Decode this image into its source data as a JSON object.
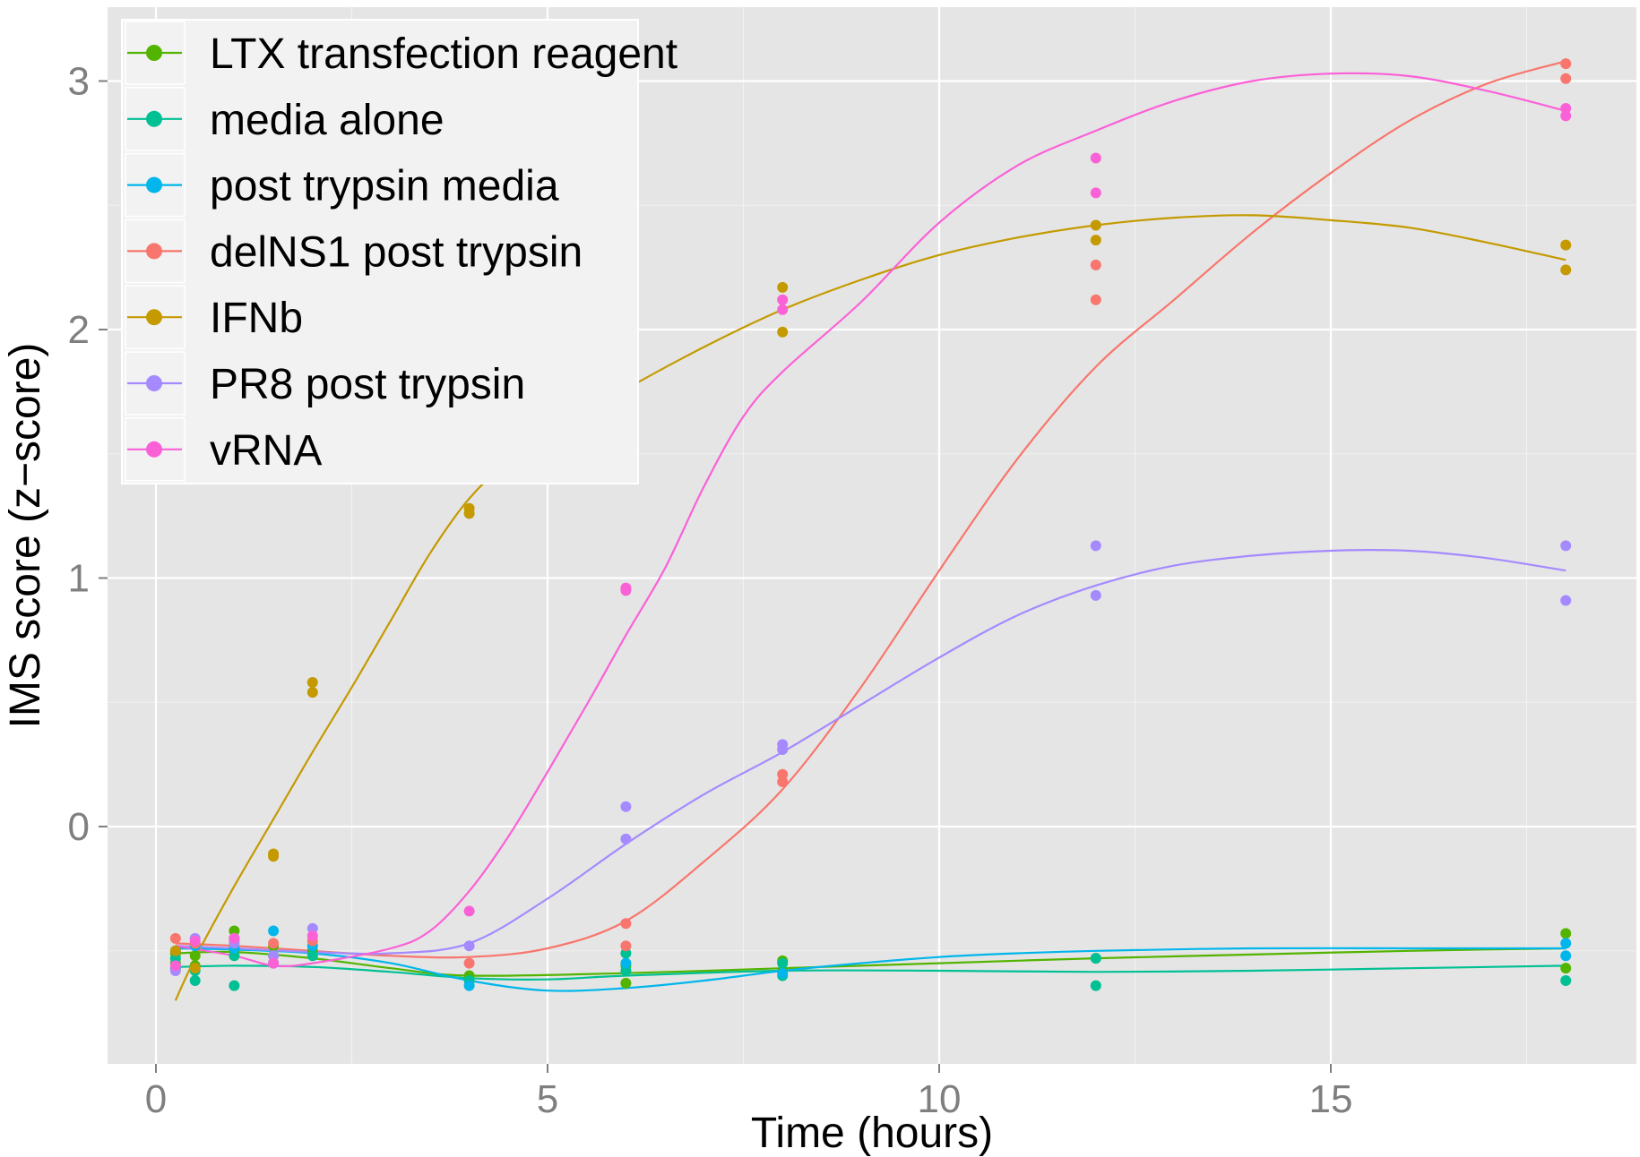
{
  "chart_data": {
    "type": "scatter",
    "xlabel": "Time (hours)",
    "ylabel": "IMS score (z−score)",
    "xlim": [
      -0.6,
      18.9
    ],
    "ylim": [
      -0.95,
      3.3
    ],
    "x_ticks": [
      0,
      5,
      10,
      15
    ],
    "x_tick_labels": [
      "0",
      "5",
      "10",
      "15"
    ],
    "y_ticks": [
      0,
      1,
      2,
      3
    ],
    "y_tick_labels": [
      "0",
      "1",
      "2",
      "3"
    ],
    "grid": true,
    "legend_position": "top-left",
    "background": "#e5e5e5",
    "series": [
      {
        "name": "LTX transfection reagent",
        "color": "#53b400",
        "points": [
          [
            0.25,
            -0.51
          ],
          [
            0.25,
            -0.55
          ],
          [
            0.5,
            -0.52
          ],
          [
            0.5,
            -0.56
          ],
          [
            1,
            -0.42
          ],
          [
            1,
            -0.5
          ],
          [
            1.5,
            -0.48
          ],
          [
            1.5,
            -0.52
          ],
          [
            2,
            -0.5
          ],
          [
            4,
            -0.6
          ],
          [
            6,
            -0.56
          ],
          [
            6,
            -0.63
          ],
          [
            8,
            -0.54
          ],
          [
            8,
            -0.58
          ],
          [
            12,
            -0.53
          ],
          [
            18,
            -0.43
          ],
          [
            18,
            -0.57
          ]
        ],
        "curve": [
          [
            0.25,
            -0.51
          ],
          [
            1,
            -0.505
          ],
          [
            2,
            -0.53
          ],
          [
            3,
            -0.57
          ],
          [
            4,
            -0.6
          ],
          [
            6,
            -0.59
          ],
          [
            8,
            -0.57
          ],
          [
            10,
            -0.55
          ],
          [
            12,
            -0.53
          ],
          [
            14,
            -0.515
          ],
          [
            16,
            -0.5
          ],
          [
            18,
            -0.49
          ]
        ]
      },
      {
        "name": "media alone",
        "color": "#00c094",
        "points": [
          [
            0.25,
            -0.53
          ],
          [
            0.25,
            -0.57
          ],
          [
            0.5,
            -0.58
          ],
          [
            0.5,
            -0.62
          ],
          [
            1,
            -0.52
          ],
          [
            1,
            -0.64
          ],
          [
            1.5,
            -0.55
          ],
          [
            2,
            -0.52
          ],
          [
            4,
            -0.62
          ],
          [
            6,
            -0.51
          ],
          [
            6,
            -0.58
          ],
          [
            8,
            -0.55
          ],
          [
            8,
            -0.6
          ],
          [
            12,
            -0.53
          ],
          [
            12,
            -0.64
          ],
          [
            18,
            -0.62
          ]
        ],
        "curve": [
          [
            0.25,
            -0.565
          ],
          [
            1,
            -0.56
          ],
          [
            2,
            -0.565
          ],
          [
            3,
            -0.585
          ],
          [
            4,
            -0.61
          ],
          [
            5,
            -0.615
          ],
          [
            6,
            -0.6
          ],
          [
            8,
            -0.58
          ],
          [
            10,
            -0.58
          ],
          [
            12,
            -0.585
          ],
          [
            14,
            -0.58
          ],
          [
            16,
            -0.57
          ],
          [
            18,
            -0.56
          ]
        ]
      },
      {
        "name": "post trypsin media",
        "color": "#00b6eb",
        "points": [
          [
            0.25,
            -0.5
          ],
          [
            0.5,
            -0.48
          ],
          [
            1,
            -0.49
          ],
          [
            1.5,
            -0.42
          ],
          [
            2,
            -0.48
          ],
          [
            4,
            -0.64
          ],
          [
            6,
            -0.55
          ],
          [
            8,
            -0.59
          ],
          [
            18,
            -0.47
          ],
          [
            18,
            -0.52
          ]
        ],
        "curve": [
          [
            0.25,
            -0.49
          ],
          [
            1,
            -0.495
          ],
          [
            2,
            -0.51
          ],
          [
            3,
            -0.55
          ],
          [
            4,
            -0.62
          ],
          [
            5,
            -0.66
          ],
          [
            6,
            -0.65
          ],
          [
            7,
            -0.62
          ],
          [
            8,
            -0.58
          ],
          [
            9,
            -0.55
          ],
          [
            10,
            -0.525
          ],
          [
            11,
            -0.51
          ],
          [
            12,
            -0.5
          ],
          [
            14,
            -0.49
          ],
          [
            16,
            -0.49
          ],
          [
            18,
            -0.49
          ]
        ]
      },
      {
        "name": "delNS1 post trypsin",
        "color": "#f8766d",
        "points": [
          [
            0.25,
            -0.45
          ],
          [
            0.5,
            -0.47
          ],
          [
            1,
            -0.46
          ],
          [
            1.5,
            -0.47
          ],
          [
            2,
            -0.46
          ],
          [
            4,
            -0.55
          ],
          [
            6,
            -0.39
          ],
          [
            6,
            -0.48
          ],
          [
            8,
            0.21
          ],
          [
            8,
            0.18
          ],
          [
            12,
            2.26
          ],
          [
            12,
            2.12
          ],
          [
            18,
            3.07
          ],
          [
            18,
            3.01
          ]
        ],
        "curve": [
          [
            0.25,
            -0.47
          ],
          [
            1,
            -0.48
          ],
          [
            2,
            -0.5
          ],
          [
            3,
            -0.52
          ],
          [
            4,
            -0.525
          ],
          [
            5,
            -0.49
          ],
          [
            6,
            -0.38
          ],
          [
            7,
            -0.14
          ],
          [
            8,
            0.15
          ],
          [
            9,
            0.56
          ],
          [
            10,
            1.03
          ],
          [
            11,
            1.48
          ],
          [
            12,
            1.85
          ],
          [
            13,
            2.12
          ],
          [
            14,
            2.39
          ],
          [
            15,
            2.63
          ],
          [
            16,
            2.84
          ],
          [
            17,
            2.99
          ],
          [
            18,
            3.08
          ]
        ]
      },
      {
        "name": "IFNb",
        "color": "#c49a00",
        "points": [
          [
            0.25,
            -0.5
          ],
          [
            0.5,
            -0.57
          ],
          [
            1,
            -0.45
          ],
          [
            1.5,
            -0.11
          ],
          [
            1.5,
            -0.12
          ],
          [
            2,
            0.58
          ],
          [
            2,
            0.54
          ],
          [
            4,
            1.28
          ],
          [
            4,
            1.26
          ],
          [
            6,
            1.75
          ],
          [
            6,
            1.66
          ],
          [
            8,
            2.17
          ],
          [
            8,
            1.99
          ],
          [
            12,
            2.42
          ],
          [
            12,
            2.36
          ],
          [
            18,
            2.34
          ],
          [
            18,
            2.24
          ]
        ],
        "curve": [
          [
            0.25,
            -0.7
          ],
          [
            0.5,
            -0.53
          ],
          [
            1,
            -0.24
          ],
          [
            1.5,
            0.03
          ],
          [
            2,
            0.3
          ],
          [
            2.5,
            0.56
          ],
          [
            3,
            0.83
          ],
          [
            3.5,
            1.1
          ],
          [
            4,
            1.32
          ],
          [
            4.5,
            1.47
          ],
          [
            5,
            1.57
          ],
          [
            6,
            1.76
          ],
          [
            7,
            1.93
          ],
          [
            8,
            2.08
          ],
          [
            9,
            2.2
          ],
          [
            10,
            2.3
          ],
          [
            11,
            2.37
          ],
          [
            12,
            2.42
          ],
          [
            13,
            2.45
          ],
          [
            14,
            2.46
          ],
          [
            15,
            2.44
          ],
          [
            16,
            2.41
          ],
          [
            17,
            2.35
          ],
          [
            18,
            2.28
          ]
        ]
      },
      {
        "name": "PR8 post trypsin",
        "color": "#a58aff",
        "points": [
          [
            0.25,
            -0.58
          ],
          [
            0.5,
            -0.45
          ],
          [
            1,
            -0.47
          ],
          [
            1.5,
            -0.52
          ],
          [
            2,
            -0.41
          ],
          [
            4,
            -0.48
          ],
          [
            6,
            0.08
          ],
          [
            6,
            -0.05
          ],
          [
            8,
            0.33
          ],
          [
            8,
            0.31
          ],
          [
            12,
            1.13
          ],
          [
            12,
            0.93
          ],
          [
            18,
            1.13
          ],
          [
            18,
            0.91
          ]
        ],
        "curve": [
          [
            0.25,
            -0.48
          ],
          [
            1,
            -0.49
          ],
          [
            2,
            -0.505
          ],
          [
            3,
            -0.51
          ],
          [
            4,
            -0.47
          ],
          [
            5,
            -0.29
          ],
          [
            6,
            -0.07
          ],
          [
            7,
            0.13
          ],
          [
            8,
            0.3
          ],
          [
            9,
            0.49
          ],
          [
            10,
            0.68
          ],
          [
            11,
            0.85
          ],
          [
            12,
            0.97
          ],
          [
            13,
            1.05
          ],
          [
            14,
            1.09
          ],
          [
            15,
            1.11
          ],
          [
            16,
            1.11
          ],
          [
            17,
            1.08
          ],
          [
            18,
            1.03
          ]
        ]
      },
      {
        "name": "vRNA",
        "color": "#fb61d7",
        "points": [
          [
            0.25,
            -0.56
          ],
          [
            0.5,
            -0.46
          ],
          [
            1,
            -0.45
          ],
          [
            1.5,
            -0.55
          ],
          [
            2,
            -0.44
          ],
          [
            4,
            -0.34
          ],
          [
            6,
            0.96
          ],
          [
            6,
            0.95
          ],
          [
            8,
            2.12
          ],
          [
            8,
            2.08
          ],
          [
            12,
            2.69
          ],
          [
            12,
            2.55
          ],
          [
            18,
            2.89
          ],
          [
            18,
            2.86
          ]
        ],
        "curve": [
          [
            0.25,
            -0.48
          ],
          [
            1,
            -0.52
          ],
          [
            1.5,
            -0.56
          ],
          [
            2,
            -0.55
          ],
          [
            3,
            -0.49
          ],
          [
            3.5,
            -0.42
          ],
          [
            4,
            -0.26
          ],
          [
            4.5,
            -0.04
          ],
          [
            5,
            0.22
          ],
          [
            5.5,
            0.49
          ],
          [
            6,
            0.77
          ],
          [
            6.5,
            1.04
          ],
          [
            7,
            1.37
          ],
          [
            7.5,
            1.65
          ],
          [
            8,
            1.83
          ],
          [
            9,
            2.11
          ],
          [
            10,
            2.43
          ],
          [
            11,
            2.66
          ],
          [
            12,
            2.8
          ],
          [
            13,
            2.92
          ],
          [
            14,
            3.0
          ],
          [
            15,
            3.03
          ],
          [
            16,
            3.02
          ],
          [
            17,
            2.96
          ],
          [
            18,
            2.88
          ]
        ]
      }
    ]
  }
}
